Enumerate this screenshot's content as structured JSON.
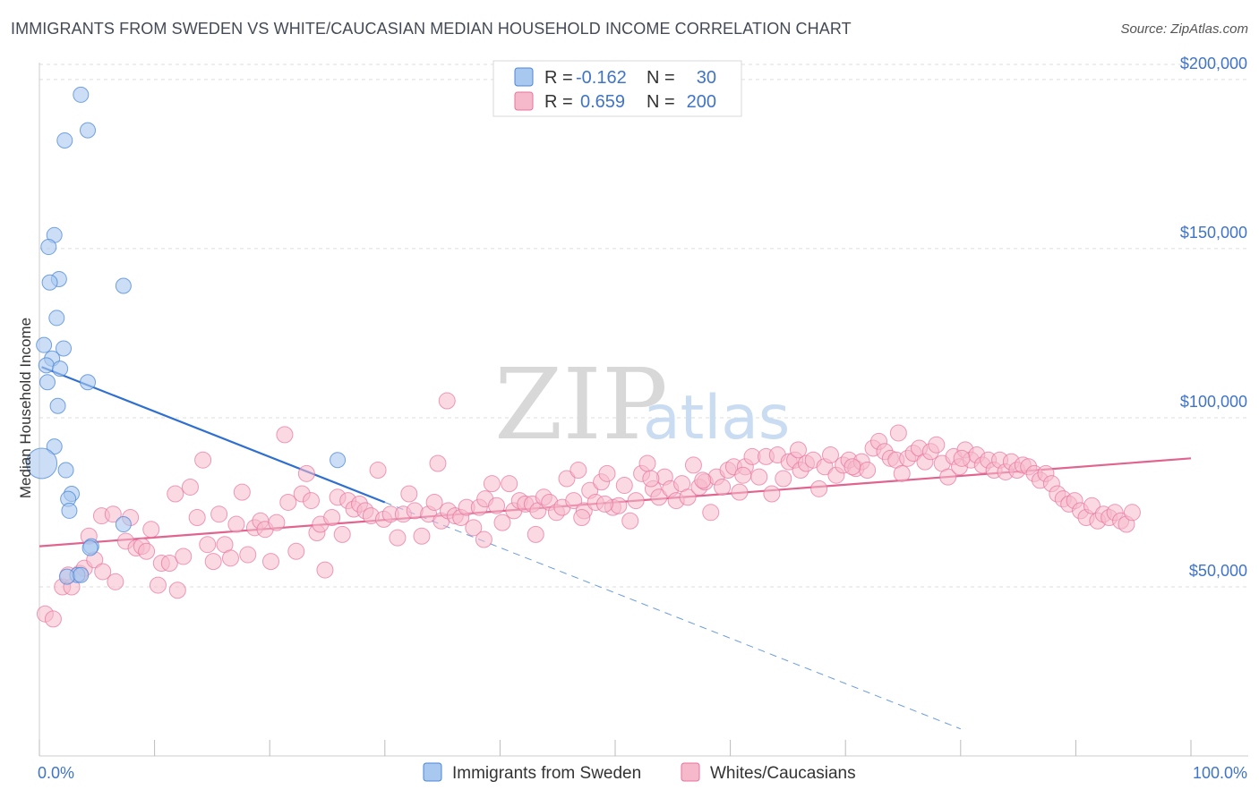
{
  "title": "IMMIGRANTS FROM SWEDEN VS WHITE/CAUCASIAN MEDIAN HOUSEHOLD INCOME CORRELATION CHART",
  "source": "Source: ZipAtlas.com",
  "watermark": {
    "zip": "ZIP",
    "atlas": "atlas"
  },
  "legend_top": {
    "rows": [
      {
        "r_label": "R =",
        "r_value": "-0.162",
        "n_label": "N =",
        "n_value": "30",
        "color": "#a9c8ef"
      },
      {
        "r_label": "R =",
        "r_value": "0.659",
        "n_label": "N =",
        "n_value": "200",
        "color": "#f6b9cc"
      }
    ]
  },
  "legend_bottom": [
    {
      "label": "Immigrants from Sweden",
      "color": "#a9c8ef"
    },
    {
      "label": "Whites/Caucasians",
      "color": "#f6b9cc"
    }
  ],
  "chart_data": {
    "type": "scatter",
    "ylabel": "Median Household Income",
    "xlabel": "",
    "xlim": [
      0,
      100
    ],
    "ylim": [
      0,
      205000
    ],
    "x_tick_labels": [
      "0.0%",
      "100.0%"
    ],
    "y_ticks": [
      {
        "value": 50000,
        "label": "$50,000"
      },
      {
        "value": 100000,
        "label": "$100,000"
      },
      {
        "value": 150000,
        "label": "$150,000"
      },
      {
        "value": 200000,
        "label": "$200,000"
      }
    ],
    "grid": true,
    "colors": {
      "sweden": "#4a86d8",
      "sweden_fill": "#a9c8ef",
      "white": "#e8729b",
      "white_fill": "#f6b9cc",
      "axis_text": "#3f74c7"
    },
    "series": [
      {
        "name": "Immigrants from Sweden",
        "trend": {
          "x0": 0.2,
          "y0": 115000,
          "x1": 30,
          "y1": 75000,
          "dash_x1": 80,
          "dash_y1": 8000
        },
        "points": [
          [
            3.6,
            195500
          ],
          [
            4.2,
            185000
          ],
          [
            2.2,
            182000
          ],
          [
            1.3,
            154000
          ],
          [
            0.8,
            150500
          ],
          [
            1.7,
            141000
          ],
          [
            0.9,
            140000
          ],
          [
            7.3,
            139000
          ],
          [
            1.5,
            129500
          ],
          [
            0.4,
            121500
          ],
          [
            2.1,
            120500
          ],
          [
            1.1,
            117500
          ],
          [
            0.6,
            115500
          ],
          [
            1.8,
            114500
          ],
          [
            0.7,
            110500
          ],
          [
            4.2,
            110500
          ],
          [
            1.6,
            103500
          ],
          [
            1.3,
            91500
          ],
          [
            0.2,
            86500
          ],
          [
            2.3,
            84500
          ],
          [
            2.8,
            77500
          ],
          [
            2.5,
            76000
          ],
          [
            2.6,
            72500
          ],
          [
            25.9,
            87500
          ],
          [
            7.3,
            68500
          ],
          [
            4.5,
            62000
          ],
          [
            4.4,
            61500
          ],
          [
            3.3,
            53500
          ],
          [
            2.4,
            53000
          ],
          [
            3.6,
            53500
          ]
        ]
      },
      {
        "name": "Whites/Caucasians",
        "trend": {
          "x0": 0,
          "y0": 62000,
          "x1": 100,
          "y1": 88000
        },
        "points": [
          [
            0.5,
            42000
          ],
          [
            1.2,
            40500
          ],
          [
            2.0,
            50000
          ],
          [
            2.8,
            50000
          ],
          [
            2.5,
            53500
          ],
          [
            3.5,
            54000
          ],
          [
            3.9,
            55500
          ],
          [
            4.3,
            65000
          ],
          [
            4.8,
            58000
          ],
          [
            5.5,
            54500
          ],
          [
            5.4,
            71000
          ],
          [
            6.4,
            71500
          ],
          [
            6.6,
            51500
          ],
          [
            7.5,
            63500
          ],
          [
            7.9,
            70500
          ],
          [
            8.4,
            61500
          ],
          [
            8.9,
            62000
          ],
          [
            9.3,
            60500
          ],
          [
            9.7,
            67000
          ],
          [
            10.3,
            50500
          ],
          [
            10.6,
            57000
          ],
          [
            11.3,
            57000
          ],
          [
            11.8,
            77500
          ],
          [
            12.0,
            49000
          ],
          [
            12.5,
            59000
          ],
          [
            13.1,
            79500
          ],
          [
            13.7,
            70500
          ],
          [
            14.2,
            87500
          ],
          [
            14.6,
            62500
          ],
          [
            15.1,
            57500
          ],
          [
            15.6,
            71500
          ],
          [
            16.1,
            62500
          ],
          [
            16.6,
            58500
          ],
          [
            17.1,
            68500
          ],
          [
            17.6,
            78000
          ],
          [
            18.1,
            59500
          ],
          [
            18.7,
            67500
          ],
          [
            19.2,
            69500
          ],
          [
            19.6,
            67000
          ],
          [
            20.1,
            57500
          ],
          [
            20.6,
            69000
          ],
          [
            21.3,
            95000
          ],
          [
            21.6,
            75000
          ],
          [
            22.3,
            60500
          ],
          [
            22.8,
            77500
          ],
          [
            23.2,
            83500
          ],
          [
            23.6,
            75500
          ],
          [
            24.1,
            66000
          ],
          [
            24.4,
            68500
          ],
          [
            24.8,
            55000
          ],
          [
            25.4,
            70500
          ],
          [
            25.9,
            76500
          ],
          [
            26.3,
            65500
          ],
          [
            26.8,
            75500
          ],
          [
            27.3,
            73000
          ],
          [
            27.8,
            74500
          ],
          [
            28.3,
            72500
          ],
          [
            28.8,
            71000
          ],
          [
            29.4,
            84500
          ],
          [
            29.9,
            70000
          ],
          [
            30.5,
            71500
          ],
          [
            31.1,
            64500
          ],
          [
            31.6,
            71500
          ],
          [
            32.1,
            77500
          ],
          [
            32.6,
            72500
          ],
          [
            33.2,
            65000
          ],
          [
            33.8,
            71500
          ],
          [
            34.3,
            75000
          ],
          [
            34.6,
            86500
          ],
          [
            34.9,
            69500
          ],
          [
            35.5,
            72500
          ],
          [
            36.1,
            71000
          ],
          [
            36.6,
            70500
          ],
          [
            37.1,
            73500
          ],
          [
            37.7,
            67500
          ],
          [
            38.2,
            73500
          ],
          [
            38.7,
            76000
          ],
          [
            39.3,
            80500
          ],
          [
            39.7,
            74000
          ],
          [
            40.2,
            69000
          ],
          [
            40.8,
            80500
          ],
          [
            41.2,
            72500
          ],
          [
            41.7,
            75500
          ],
          [
            42.2,
            74500
          ],
          [
            42.8,
            74500
          ],
          [
            43.3,
            72500
          ],
          [
            43.8,
            76500
          ],
          [
            44.3,
            75000
          ],
          [
            44.9,
            72000
          ],
          [
            45.4,
            73500
          ],
          [
            45.8,
            82000
          ],
          [
            46.4,
            75500
          ],
          [
            46.8,
            84500
          ],
          [
            47.3,
            72500
          ],
          [
            47.8,
            78500
          ],
          [
            48.3,
            75000
          ],
          [
            48.8,
            81000
          ],
          [
            49.3,
            83500
          ],
          [
            49.8,
            73500
          ],
          [
            50.3,
            74000
          ],
          [
            50.8,
            80000
          ],
          [
            51.3,
            69500
          ],
          [
            51.8,
            75500
          ],
          [
            52.3,
            83500
          ],
          [
            52.8,
            86500
          ],
          [
            53.3,
            79000
          ],
          [
            53.8,
            76500
          ],
          [
            54.3,
            82500
          ],
          [
            54.8,
            79000
          ],
          [
            55.3,
            75500
          ],
          [
            55.8,
            80500
          ],
          [
            56.3,
            76500
          ],
          [
            56.8,
            86000
          ],
          [
            57.3,
            79500
          ],
          [
            57.8,
            81000
          ],
          [
            58.3,
            72000
          ],
          [
            58.8,
            82500
          ],
          [
            59.3,
            79500
          ],
          [
            59.8,
            84500
          ],
          [
            60.3,
            85500
          ],
          [
            60.8,
            78000
          ],
          [
            61.3,
            85500
          ],
          [
            61.9,
            88500
          ],
          [
            62.5,
            82500
          ],
          [
            63.1,
            88500
          ],
          [
            63.6,
            77500
          ],
          [
            64.1,
            89000
          ],
          [
            64.6,
            82000
          ],
          [
            65.1,
            87000
          ],
          [
            65.6,
            87500
          ],
          [
            66.1,
            84500
          ],
          [
            66.6,
            86500
          ],
          [
            67.2,
            87500
          ],
          [
            67.7,
            79000
          ],
          [
            68.2,
            85500
          ],
          [
            68.7,
            89000
          ],
          [
            69.2,
            83000
          ],
          [
            69.8,
            86000
          ],
          [
            70.3,
            87500
          ],
          [
            70.9,
            85000
          ],
          [
            71.4,
            87000
          ],
          [
            71.9,
            84500
          ],
          [
            72.4,
            91000
          ],
          [
            72.9,
            93000
          ],
          [
            73.4,
            90000
          ],
          [
            73.9,
            88000
          ],
          [
            74.4,
            87500
          ],
          [
            74.9,
            83500
          ],
          [
            75.4,
            88000
          ],
          [
            75.9,
            89500
          ],
          [
            76.4,
            91000
          ],
          [
            76.9,
            87000
          ],
          [
            77.4,
            90000
          ],
          [
            77.9,
            92000
          ],
          [
            78.4,
            86500
          ],
          [
            78.9,
            82500
          ],
          [
            79.4,
            88500
          ],
          [
            79.9,
            85500
          ],
          [
            80.4,
            90500
          ],
          [
            80.9,
            87500
          ],
          [
            81.4,
            89000
          ],
          [
            81.9,
            86000
          ],
          [
            82.4,
            87500
          ],
          [
            82.9,
            84500
          ],
          [
            83.4,
            87500
          ],
          [
            83.9,
            84000
          ],
          [
            84.4,
            87000
          ],
          [
            84.9,
            84500
          ],
          [
            85.4,
            86000
          ],
          [
            85.9,
            85500
          ],
          [
            86.4,
            83500
          ],
          [
            86.9,
            81500
          ],
          [
            87.4,
            83500
          ],
          [
            87.9,
            80500
          ],
          [
            88.4,
            77500
          ],
          [
            88.9,
            76000
          ],
          [
            89.4,
            74500
          ],
          [
            89.9,
            75500
          ],
          [
            90.4,
            72500
          ],
          [
            90.9,
            70500
          ],
          [
            91.4,
            74000
          ],
          [
            91.9,
            69500
          ],
          [
            92.4,
            71500
          ],
          [
            92.9,
            70500
          ],
          [
            93.4,
            72000
          ],
          [
            93.9,
            69500
          ],
          [
            94.4,
            68500
          ],
          [
            94.9,
            72000
          ],
          [
            35.4,
            105000
          ],
          [
            38.6,
            64000
          ],
          [
            43.1,
            65500
          ],
          [
            47.1,
            70500
          ],
          [
            49.1,
            74500
          ],
          [
            53.1,
            82000
          ],
          [
            57.6,
            81500
          ],
          [
            61.1,
            83000
          ],
          [
            65.9,
            90500
          ],
          [
            70.6,
            85500
          ],
          [
            74.6,
            95500
          ],
          [
            80.1,
            88000
          ]
        ]
      }
    ]
  }
}
